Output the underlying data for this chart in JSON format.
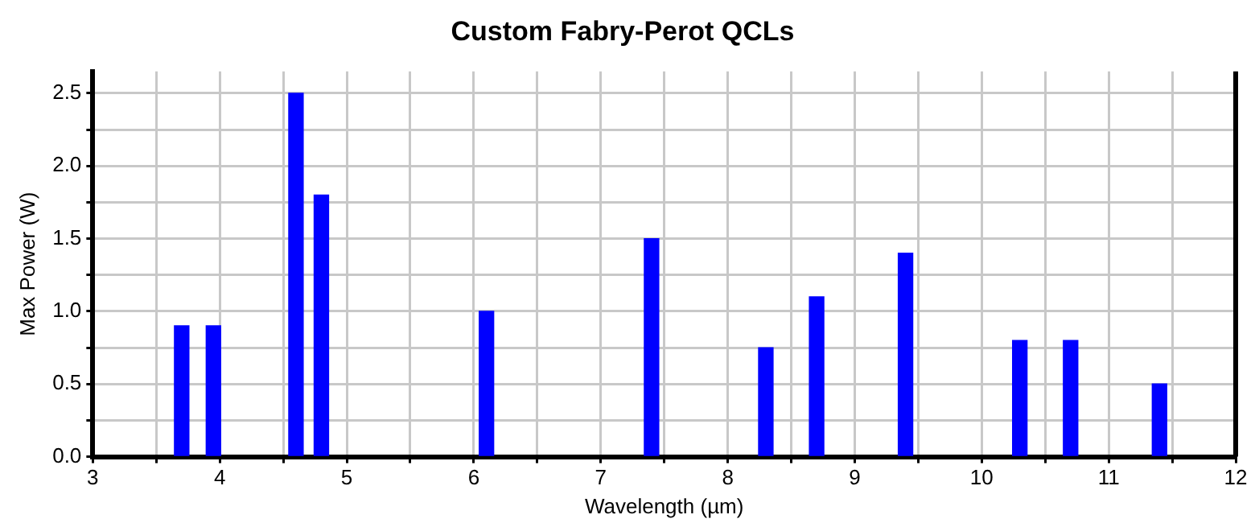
{
  "chart_data": {
    "type": "bar",
    "title": "Custom Fabry-Perot QCLs",
    "xlabel": "Wavelength (µm)",
    "ylabel": "Max Power (W)",
    "x": [
      3.7,
      3.95,
      4.6,
      4.8,
      6.1,
      7.4,
      8.3,
      8.7,
      9.4,
      10.3,
      10.7,
      11.4
    ],
    "values": [
      0.9,
      0.9,
      2.5,
      1.8,
      1.0,
      1.5,
      0.75,
      1.1,
      1.4,
      0.8,
      0.8,
      0.5
    ],
    "color": "#0000ff",
    "xlim": [
      3,
      12
    ],
    "xticks": [
      3,
      {
        "value": 3.5,
        "label": null
      },
      4,
      {
        "value": 4.5,
        "label": null
      },
      5,
      {
        "value": 5.5,
        "label": null
      },
      6,
      {
        "value": 6.5,
        "label": null
      },
      7,
      {
        "value": 7.5,
        "label": null
      },
      8,
      {
        "value": 8.5,
        "label": null
      },
      9,
      {
        "value": 9.5,
        "label": null
      },
      10,
      {
        "value": 10.5,
        "label": null
      },
      11,
      {
        "value": 11.5,
        "label": null
      },
      12
    ],
    "ylim": [
      0,
      2.65
    ],
    "yticks": [
      {
        "value": 0,
        "label": "0.0"
      },
      {
        "value": 0.25,
        "label": null
      },
      0.5,
      {
        "value": 0.75,
        "label": null
      },
      {
        "value": 1,
        "label": "1.0"
      },
      {
        "value": 1.25,
        "label": null
      },
      1.5,
      {
        "value": 1.75,
        "label": null
      },
      {
        "value": 2,
        "label": "2.0"
      },
      {
        "value": 2.25,
        "label": null
      },
      2.5
    ],
    "grid": true,
    "legend": false
  }
}
